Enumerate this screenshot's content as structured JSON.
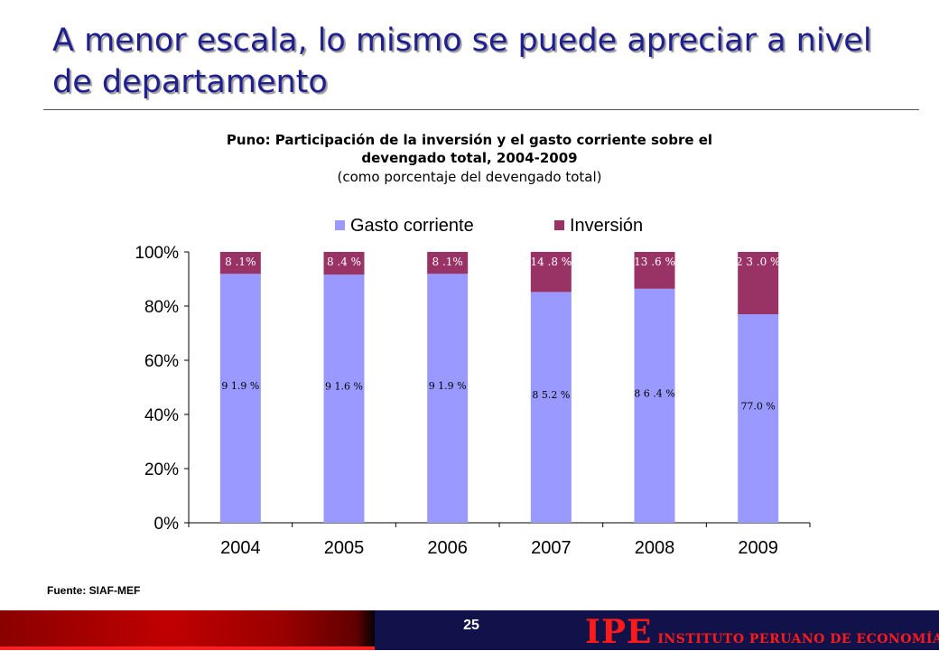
{
  "slide": {
    "title": "A menor escala, lo mismo se puede apreciar a nivel de departamento",
    "source": "Fuente: SIAF-MEF",
    "page_number": "25",
    "logo_mark": "IPE",
    "logo_text": "INSTITUTO PERUANO DE ECONOMÍA"
  },
  "chart_data": {
    "type": "bar",
    "stacked": true,
    "title_line1": "Puno: Participación de la inversión y el gasto corriente sobre el",
    "title_line2": "devengado total, 2004-2009",
    "subtitle": "(como porcentaje del devengado total)",
    "categories": [
      "2004",
      "2005",
      "2006",
      "2007",
      "2008",
      "2009"
    ],
    "series": [
      {
        "name": "Gasto corriente",
        "color": "#9999ff",
        "values": [
          91.9,
          91.6,
          91.9,
          85.2,
          86.4,
          77.0
        ],
        "labels": [
          "9 1.9 %",
          "9 1.6 %",
          "9 1.9 %",
          "8 5.2 %",
          "8 6 .4 %",
          "77.0 %"
        ]
      },
      {
        "name": "Inversión",
        "color": "#993366",
        "values": [
          8.1,
          8.4,
          8.1,
          14.8,
          13.6,
          23.0
        ],
        "labels": [
          "8 .1%",
          "8 .4 %",
          "8 .1%",
          "14 .8 %",
          "13 .6 %",
          "2 3 .0 %"
        ]
      }
    ],
    "y_ticks": [
      "0%",
      "20%",
      "40%",
      "60%",
      "80%",
      "100%"
    ],
    "ylim": [
      0,
      100
    ],
    "legend_position": "top",
    "grid": false
  }
}
